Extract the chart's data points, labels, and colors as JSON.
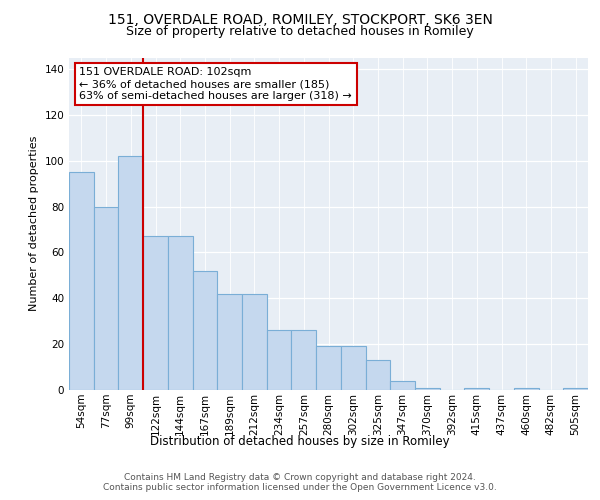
{
  "title_line1": "151, OVERDALE ROAD, ROMILEY, STOCKPORT, SK6 3EN",
  "title_line2": "Size of property relative to detached houses in Romiley",
  "xlabel": "Distribution of detached houses by size in Romiley",
  "ylabel": "Number of detached properties",
  "categories": [
    "54sqm",
    "77sqm",
    "99sqm",
    "122sqm",
    "144sqm",
    "167sqm",
    "189sqm",
    "212sqm",
    "234sqm",
    "257sqm",
    "280sqm",
    "302sqm",
    "325sqm",
    "347sqm",
    "370sqm",
    "392sqm",
    "415sqm",
    "437sqm",
    "460sqm",
    "482sqm",
    "505sqm"
  ],
  "bar_values": [
    95,
    80,
    102,
    67,
    67,
    52,
    42,
    42,
    26,
    26,
    19,
    19,
    13,
    4,
    1,
    0,
    1,
    0,
    1,
    0,
    1
  ],
  "bar_color": "#c5d8ee",
  "bar_edge_color": "#7aaed6",
  "highlight_color": "#cc0000",
  "annotation_text": "151 OVERDALE ROAD: 102sqm\n← 36% of detached houses are smaller (185)\n63% of semi-detached houses are larger (318) →",
  "annotation_box_color": "#ffffff",
  "annotation_box_edge": "#cc0000",
  "ylim": [
    0,
    145
  ],
  "yticks": [
    0,
    20,
    40,
    60,
    80,
    100,
    120,
    140
  ],
  "bg_color": "#e8eef5",
  "footer_text": "Contains HM Land Registry data © Crown copyright and database right 2024.\nContains public sector information licensed under the Open Government Licence v3.0.",
  "title_fontsize": 10,
  "subtitle_fontsize": 9,
  "axis_fontsize": 8,
  "tick_fontsize": 7.5,
  "footer_fontsize": 6.5,
  "annotation_fontsize": 8
}
